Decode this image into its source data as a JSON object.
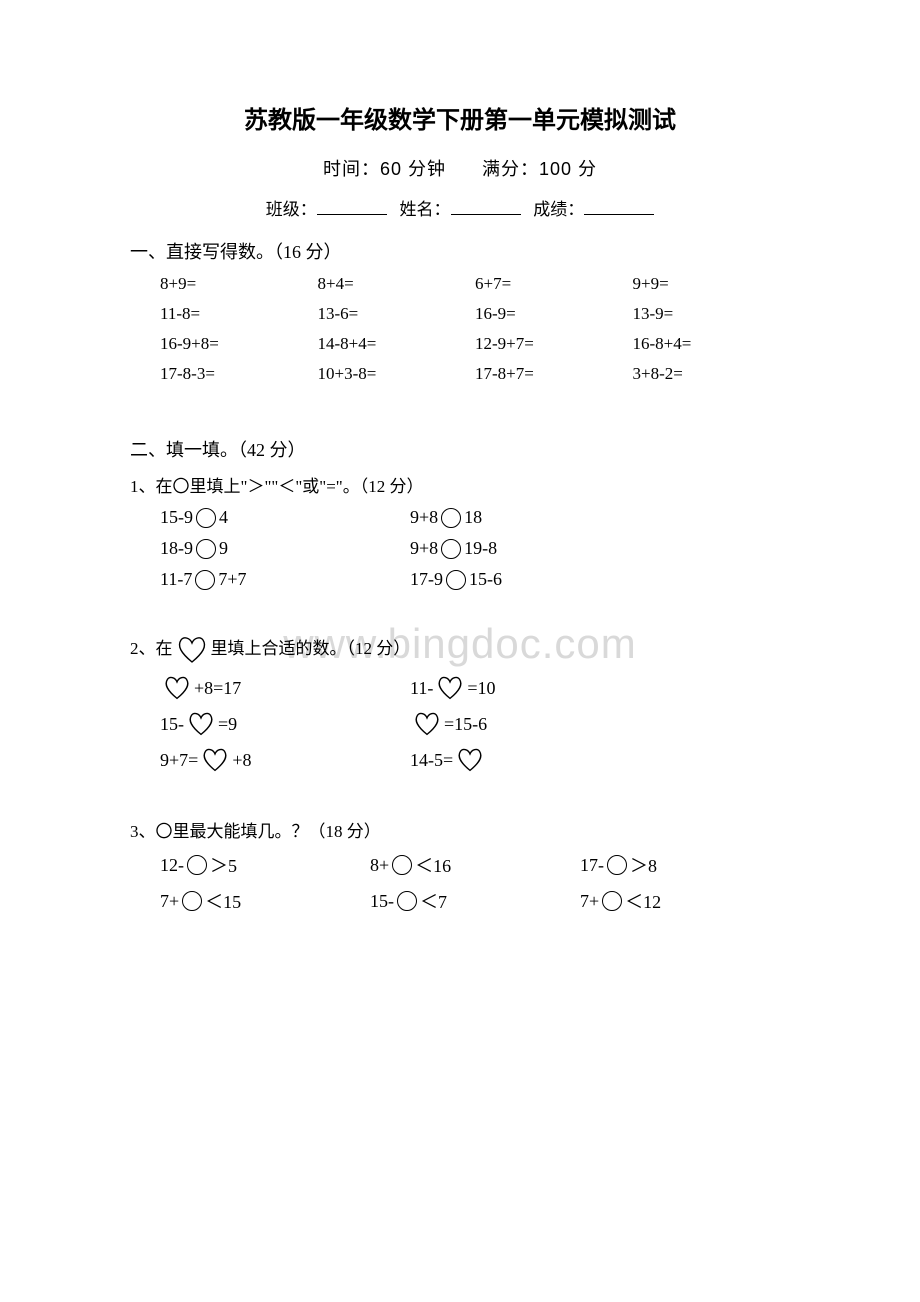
{
  "title": "苏教版一年级数学下册第一单元模拟测试",
  "subtitle_time": "时间：60 分钟",
  "subtitle_score": "满分：100 分",
  "info": {
    "class": "班级：",
    "name": "姓名：",
    "score": "成绩："
  },
  "watermark": "www.bingdoc.com",
  "s1": {
    "head": "一、直接写得数。（16 分）",
    "rows": [
      [
        "8+9=",
        "8+4=",
        "6+7=",
        "9+9="
      ],
      [
        "11-8=",
        "13-6=",
        "16-9=",
        "13-9="
      ],
      [
        "16-9+8=",
        "14-8+4=",
        "12-9+7=",
        "16-8+4="
      ],
      [
        "17-8-3=",
        "10+3-8=",
        "17-8+7=",
        "3+8-2="
      ]
    ]
  },
  "s2": {
    "head": "二、填一填。（42 分）",
    "q1": {
      "head": "1、在〇里填上\"＞\"\"＜\"或\"=\"。（12 分）",
      "rows": [
        [
          {
            "l": "15-9",
            "r": "4"
          },
          {
            "l": "9+8",
            "r": "18"
          }
        ],
        [
          {
            "l": "18-9",
            "r": "9"
          },
          {
            "l": "9+8",
            "r": "19-8"
          }
        ],
        [
          {
            "l": "11-7",
            "r": "7+7"
          },
          {
            "l": "17-9",
            "r": "15-6"
          }
        ]
      ]
    },
    "q2": {
      "head_pre": "2、在",
      "head_post": "里填上合适的数。（12 分）",
      "rows": [
        [
          {
            "pre": "",
            "mid": "+8=17",
            "post": ""
          },
          {
            "pre": "11-",
            "mid": "",
            "post": "=10"
          }
        ],
        [
          {
            "pre": "15-",
            "mid": "",
            "post": "=9"
          },
          {
            "pre": "",
            "mid": "",
            "post": "=15-6"
          }
        ],
        [
          {
            "pre": "9+7=",
            "mid": "",
            "post": "+8"
          },
          {
            "pre": "14-5=",
            "mid": "",
            "post": ""
          }
        ]
      ]
    },
    "q3": {
      "head": "3、〇里最大能填几。？（18 分）",
      "rows": [
        [
          {
            "l": "12-",
            "r": "＞5"
          },
          {
            "l": "8+",
            "r": "＜16"
          },
          {
            "l": "17-",
            "r": "＞8"
          }
        ],
        [
          {
            "l": "7+",
            "r": "＜15"
          },
          {
            "l": "15-",
            "r": "＜7"
          },
          {
            "l": "7+",
            "r": "＜12"
          }
        ]
      ]
    }
  }
}
